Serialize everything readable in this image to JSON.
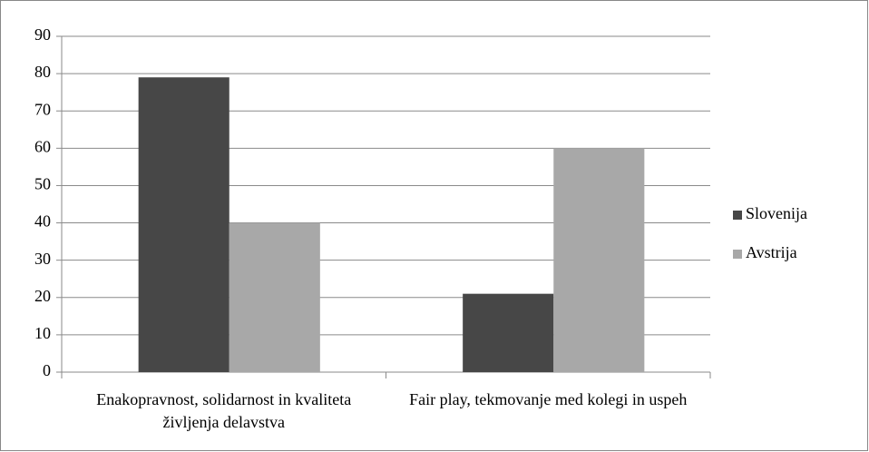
{
  "chart_data": {
    "type": "bar",
    "categories": [
      "Enakopravnost, solidarnost in kvaliteta življenja delavstva",
      "Fair play, tekmovanje med kolegi in uspeh"
    ],
    "series": [
      {
        "name": "Slovenija",
        "color": "#474747",
        "values": [
          79,
          21
        ]
      },
      {
        "name": "Avstrija",
        "color": "#a8a8a8",
        "values": [
          40,
          60
        ]
      }
    ],
    "ylim": [
      0,
      90
    ],
    "yticks": [
      0,
      10,
      20,
      30,
      40,
      50,
      60,
      70,
      80,
      90
    ],
    "grid": true,
    "legend": "right"
  }
}
